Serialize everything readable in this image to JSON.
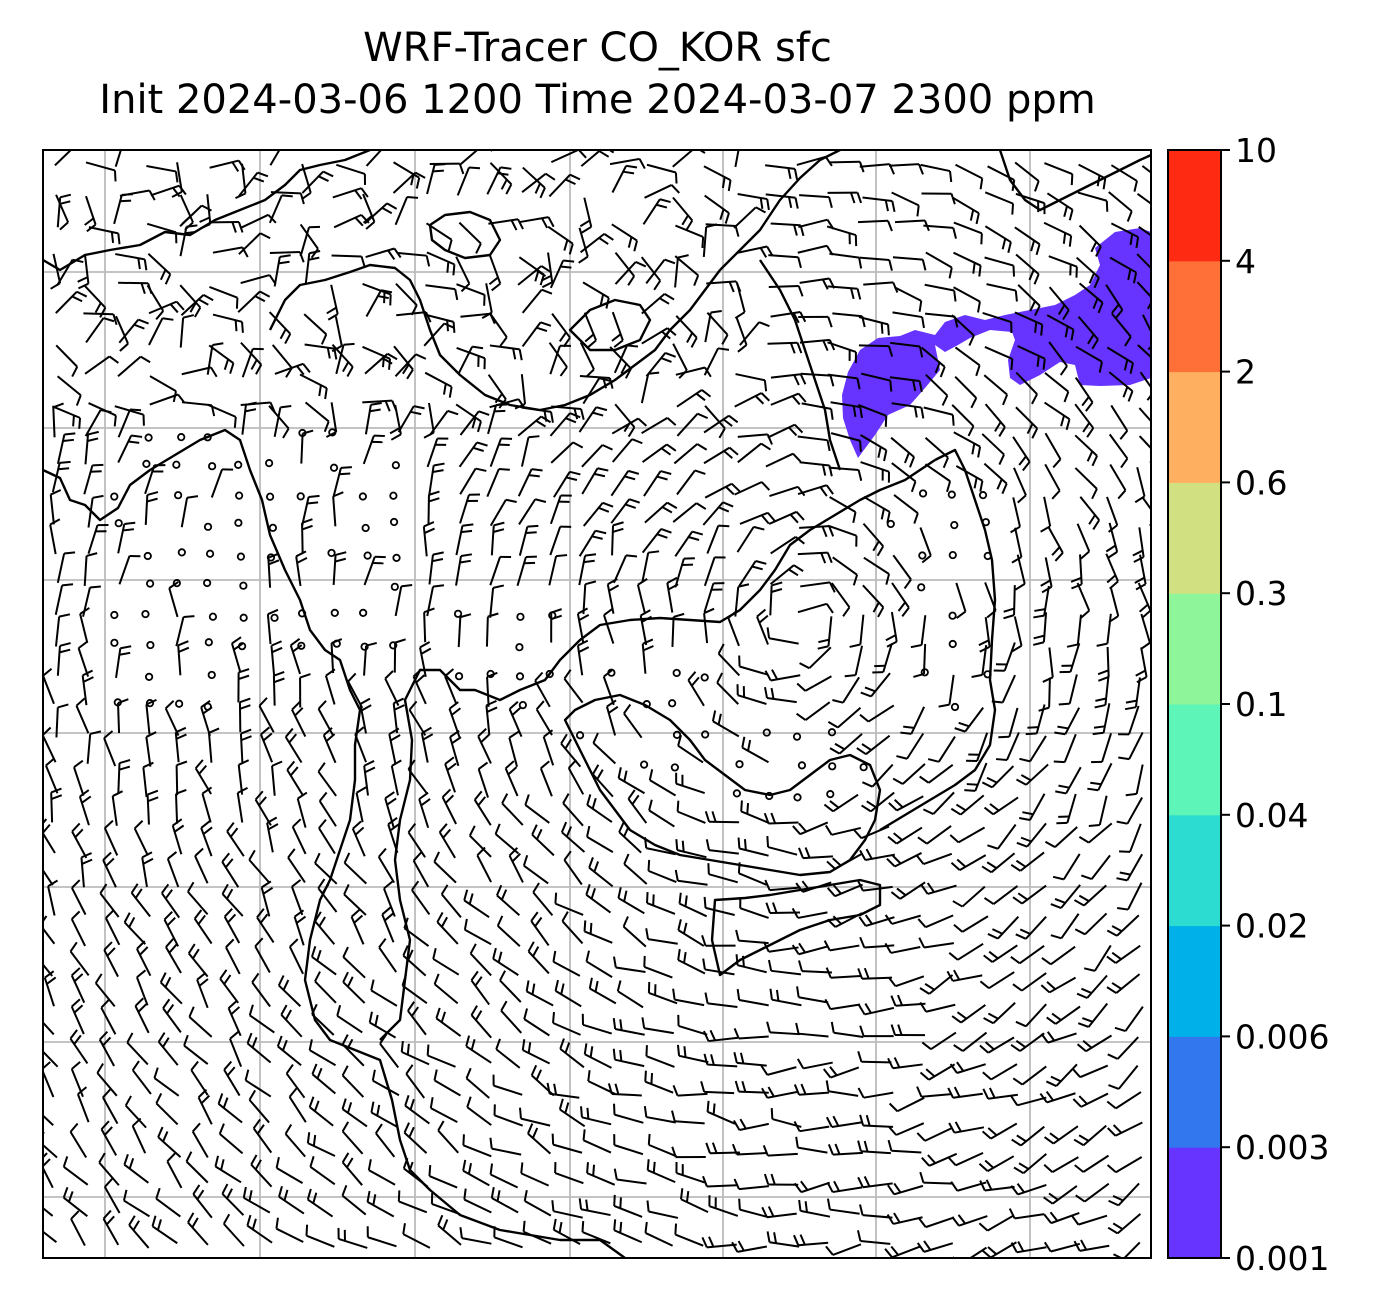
{
  "title": {
    "line1": "WRF-Tracer CO_KOR sfc",
    "line2": "Init 2024-03-06 1200 Time 2024-03-07 2300 ppm"
  },
  "colorbar": {
    "levels": [
      "0.001",
      "0.003",
      "0.006",
      "0.02",
      "0.04",
      "0.1",
      "0.3",
      "0.6",
      "2",
      "4",
      "10"
    ],
    "colors": [
      "#6633ff",
      "#3377ee",
      "#00b0e8",
      "#2ddcd0",
      "#5ef5b8",
      "#8ef59a",
      "#d1e080",
      "#feb060",
      "#ff7038",
      "#ff2a12"
    ]
  },
  "map": {
    "grid_color": "#bbbbbb",
    "coastline_color": "#000000",
    "tracer_color": "#6633ff"
  }
}
